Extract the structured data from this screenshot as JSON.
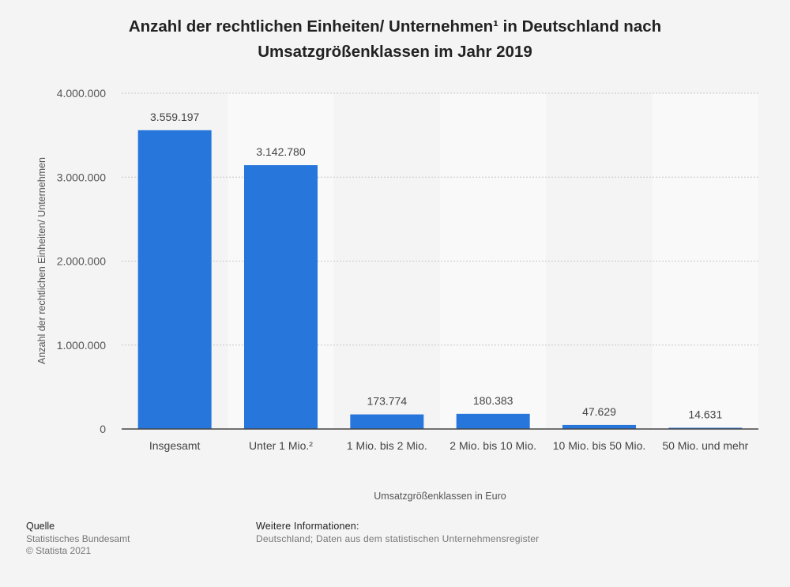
{
  "chart_data": {
    "type": "bar",
    "title": [
      "Anzahl der rechtlichen Einheiten/ Unternehmen¹ in Deutschland nach",
      "Umsatzgrößenklassen im Jahr 2019"
    ],
    "categories": [
      "Insgesamt",
      "Unter 1 Mio.²",
      "1 Mio. bis 2 Mio.",
      "2 Mio. bis 10 Mio.",
      "10 Mio. bis 50 Mio.",
      "50 Mio. und mehr"
    ],
    "values": [
      3559197,
      3142780,
      173774,
      180383,
      47629,
      14631
    ],
    "value_labels": [
      "3.559.197",
      "3.142.780",
      "173.774",
      "180.383",
      "47.629",
      "14.631"
    ],
    "ylim": [
      0,
      4000000
    ],
    "yticks": [
      0,
      1000000,
      2000000,
      3000000,
      4000000
    ],
    "ytick_labels": [
      "0",
      "1.000.000",
      "2.000.000",
      "3.000.000",
      "4.000.000"
    ],
    "xlabel": "Umsatzgrößenklassen in Euro",
    "ylabel": "Anzahl der rechtlichen Einheiten/ Unternehmen",
    "grid": true,
    "bar_color": "#2776dc"
  },
  "footer": {
    "source_heading": "Quelle",
    "source": "Statistisches Bundesamt",
    "copyright": "© Statista 2021",
    "info_heading": "Weitere Informationen:",
    "info": "Deutschland; Daten aus dem statistischen Unternehmensregister"
  }
}
